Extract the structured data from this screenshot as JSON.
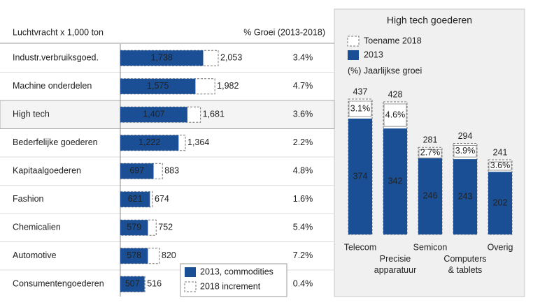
{
  "chart_data": [
    {
      "type": "hbar-overlay",
      "title": "Luchtvracht x 1,000 ton",
      "categories": [
        "Industr.verbruiksgoed.",
        "Machine onderdelen",
        "High tech",
        "Bederfelijke goederen",
        "Kapitaalgoederen",
        "Fashion",
        "Chemicalien",
        "Automotive",
        "Consumentengoederen"
      ],
      "series": [
        {
          "name": "2013, commodities",
          "color": "#1a4f95",
          "values": [
            1738,
            1575,
            1407,
            1222,
            697,
            621,
            579,
            578,
            507
          ],
          "value_labels": [
            "1,738",
            "1,575",
            "1,407",
            "1,222",
            "697",
            "621",
            "579",
            "578",
            "507"
          ]
        },
        {
          "name": "2018 increment",
          "color": "#ffffff",
          "values": [
            2053,
            1982,
            1681,
            1364,
            883,
            674,
            752,
            820,
            516
          ],
          "value_labels": [
            "2,053",
            "1,982",
            "1,681",
            "1,364",
            "883",
            "674",
            "752",
            "820",
            "516"
          ]
        }
      ],
      "growth": {
        "name": "% Groei (2013-2018)",
        "values": [
          3.4,
          4.7,
          3.6,
          2.2,
          4.8,
          1.6,
          5.4,
          7.2,
          0.4
        ],
        "value_labels": [
          "3.4%",
          "4.7%",
          "3.6%",
          "2.2%",
          "4.8%",
          "1.6%",
          "5.4%",
          "7.2%",
          "0.4%"
        ]
      },
      "highlight": 2
    },
    {
      "type": "vbar-overlay",
      "title": "High tech goederen",
      "categories": [
        "Telecom",
        "Precisie\napparatuur",
        "Semicon",
        "Computers\n& tablets",
        "Overig"
      ],
      "series": [
        {
          "name": "Toename 2018",
          "color": "#ffffff",
          "values": [
            437,
            428,
            281,
            294,
            241
          ]
        },
        {
          "name": "2013",
          "color": "#1a4f95",
          "values": [
            374,
            342,
            246,
            243,
            202
          ]
        }
      ],
      "growth": {
        "name": "(%) Jaarlijkse groei",
        "values": [
          3.1,
          4.6,
          2.7,
          3.9,
          3.6
        ],
        "value_labels": [
          "3.1%",
          "4.6%",
          "2.7%",
          "3.9%",
          "3.6%"
        ]
      }
    }
  ]
}
